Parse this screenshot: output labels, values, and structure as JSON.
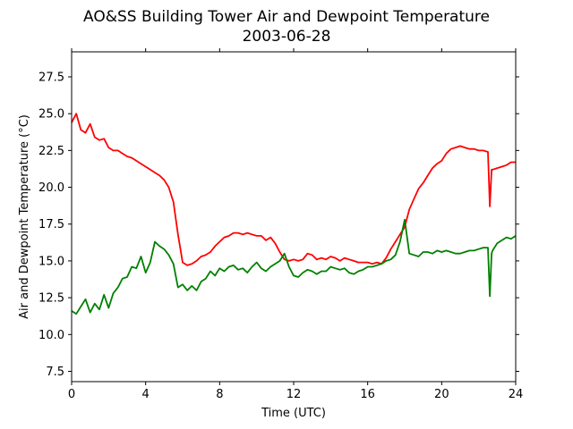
{
  "chart_data": {
    "type": "line",
    "title": "AO&SS Building Tower Air and Dewpoint Temperature",
    "subtitle": "2003-06-28",
    "xlabel": "Time (UTC)",
    "ylabel": "Air and Dewpoint Temperature (°C)",
    "xlim": [
      0,
      24
    ],
    "ylim": [
      6.8,
      29.2
    ],
    "xticks": [
      0,
      4,
      8,
      12,
      16,
      20,
      24
    ],
    "yticks": [
      7.5,
      10.0,
      12.5,
      15.0,
      17.5,
      20.0,
      22.5,
      25.0,
      27.5
    ],
    "ytick_labels": [
      "7.5",
      "10.0",
      "12.5",
      "15.0",
      "17.5",
      "20.0",
      "22.5",
      "25.0",
      "27.5"
    ],
    "grid": false,
    "x": [
      0.0,
      0.25,
      0.5,
      0.75,
      1.0,
      1.25,
      1.5,
      1.75,
      2.0,
      2.25,
      2.5,
      2.75,
      3.0,
      3.25,
      3.5,
      3.75,
      4.0,
      4.25,
      4.5,
      4.75,
      5.0,
      5.25,
      5.5,
      5.75,
      6.0,
      6.25,
      6.5,
      6.75,
      7.0,
      7.25,
      7.5,
      7.75,
      8.0,
      8.25,
      8.5,
      8.75,
      9.0,
      9.25,
      9.5,
      9.75,
      10.0,
      10.25,
      10.5,
      10.75,
      11.0,
      11.25,
      11.5,
      11.75,
      12.0,
      12.25,
      12.5,
      12.75,
      13.0,
      13.25,
      13.5,
      13.75,
      14.0,
      14.25,
      14.5,
      14.75,
      15.0,
      15.25,
      15.5,
      15.75,
      16.0,
      16.25,
      16.5,
      16.75,
      17.0,
      17.25,
      17.5,
      17.75,
      18.0,
      18.25,
      18.5,
      18.75,
      19.0,
      19.25,
      19.5,
      19.75,
      20.0,
      20.25,
      20.5,
      20.75,
      21.0,
      21.25,
      21.5,
      21.75,
      22.0,
      22.25,
      22.5,
      22.6,
      22.7,
      22.75,
      23.0,
      23.25,
      23.5,
      23.75,
      24.0
    ],
    "series": [
      {
        "color": "#ff0000",
        "values": [
          24.4,
          25.0,
          23.9,
          23.7,
          24.3,
          23.4,
          23.2,
          23.3,
          22.7,
          22.5,
          22.5,
          22.3,
          22.1,
          22.0,
          21.8,
          21.6,
          21.4,
          21.2,
          21.0,
          20.8,
          20.5,
          20.0,
          19.0,
          16.8,
          14.9,
          14.7,
          14.8,
          15.0,
          15.3,
          15.4,
          15.6,
          16.0,
          16.3,
          16.6,
          16.7,
          16.9,
          16.9,
          16.8,
          16.9,
          16.8,
          16.7,
          16.7,
          16.4,
          16.6,
          16.2,
          15.6,
          15.1,
          15.0,
          15.1,
          15.0,
          15.1,
          15.5,
          15.4,
          15.1,
          15.2,
          15.1,
          15.3,
          15.2,
          15.0,
          15.2,
          15.1,
          15.0,
          14.9,
          14.9,
          14.9,
          14.8,
          14.9,
          14.8,
          15.2,
          15.8,
          16.3,
          16.8,
          17.3,
          18.5,
          19.2,
          19.9,
          20.3,
          20.8,
          21.3,
          21.6,
          21.8,
          22.3,
          22.6,
          22.7,
          22.8,
          22.7,
          22.6,
          22.6,
          22.5,
          22.5,
          22.4,
          18.7,
          21.2,
          21.2,
          21.3,
          21.4,
          21.5,
          21.7,
          21.7
        ]
      },
      {
        "color": "#008000",
        "values": [
          11.6,
          11.4,
          11.9,
          12.4,
          11.5,
          12.1,
          11.7,
          12.7,
          11.8,
          12.8,
          13.2,
          13.8,
          13.9,
          14.6,
          14.5,
          15.3,
          14.2,
          14.9,
          16.3,
          16.0,
          15.8,
          15.4,
          14.8,
          13.2,
          13.4,
          13.0,
          13.3,
          13.0,
          13.6,
          13.8,
          14.3,
          14.0,
          14.5,
          14.3,
          14.6,
          14.7,
          14.4,
          14.5,
          14.2,
          14.6,
          14.9,
          14.5,
          14.3,
          14.6,
          14.8,
          15.0,
          15.5,
          14.6,
          14.0,
          13.9,
          14.2,
          14.4,
          14.3,
          14.1,
          14.3,
          14.3,
          14.6,
          14.5,
          14.4,
          14.5,
          14.2,
          14.1,
          14.3,
          14.4,
          14.6,
          14.6,
          14.7,
          14.8,
          15.0,
          15.1,
          15.4,
          16.3,
          17.8,
          15.5,
          15.4,
          15.3,
          15.6,
          15.6,
          15.5,
          15.7,
          15.6,
          15.7,
          15.6,
          15.5,
          15.5,
          15.6,
          15.7,
          15.7,
          15.8,
          15.9,
          15.9,
          12.6,
          15.5,
          15.7,
          16.2,
          16.4,
          16.6,
          16.5,
          16.7
        ]
      }
    ]
  }
}
